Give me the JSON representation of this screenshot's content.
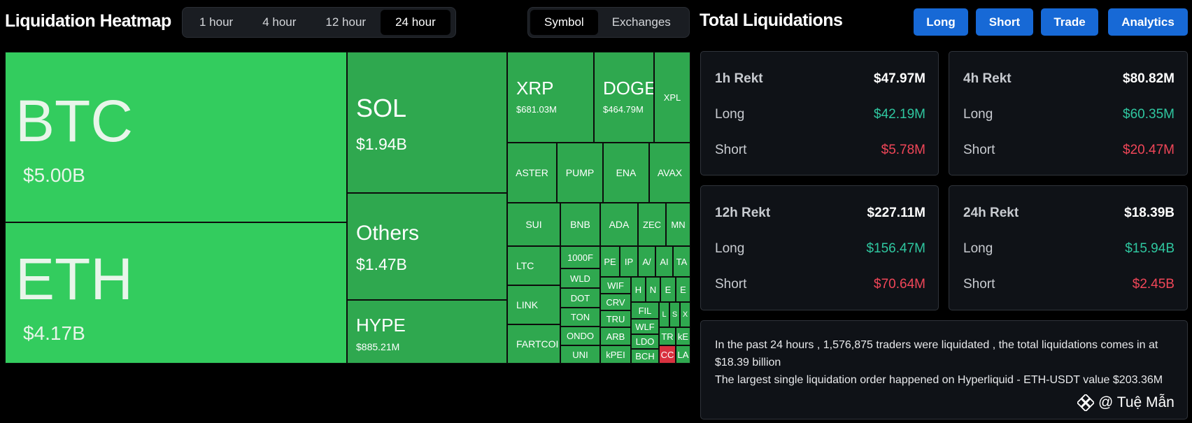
{
  "heatmap": {
    "title": "Liquidation Heatmap",
    "time_options": [
      "1 hour",
      "4 hour",
      "12 hour",
      "24 hour"
    ],
    "time_selected": "24 hour",
    "view_options": [
      "Symbol",
      "Exchanges"
    ],
    "view_selected": "Symbol",
    "tiles": {
      "btc": {
        "symbol": "BTC",
        "value": "$5.00B"
      },
      "eth": {
        "symbol": "ETH",
        "value": "$4.17B"
      },
      "sol": {
        "symbol": "SOL",
        "value": "$1.94B"
      },
      "others": {
        "symbol": "Others",
        "value": "$1.47B"
      },
      "hype": {
        "symbol": "HYPE",
        "value": "$885.21M"
      },
      "xrp": {
        "symbol": "XRP",
        "value": "$681.03M"
      },
      "doge": {
        "symbol": "DOGE",
        "value": "$464.79M"
      },
      "xpl": {
        "symbol": "XPL"
      },
      "aster": {
        "symbol": "ASTER"
      },
      "pump": {
        "symbol": "PUMP"
      },
      "ena": {
        "symbol": "ENA"
      },
      "avax": {
        "symbol": "AVAX"
      },
      "sui": {
        "symbol": "SUI"
      },
      "bnb": {
        "symbol": "BNB"
      },
      "ada": {
        "symbol": "ADA"
      },
      "zec": {
        "symbol": "ZEC"
      },
      "mnt": {
        "symbol": "MN"
      },
      "ltc": {
        "symbol": "LTC"
      },
      "link": {
        "symbol": "LINK"
      },
      "fartcoin": {
        "symbol": "FARTCOI"
      },
      "k1000": {
        "symbol": "1000F"
      },
      "wld": {
        "symbol": "WLD"
      },
      "dot": {
        "symbol": "DOT"
      },
      "ton": {
        "symbol": "TON"
      },
      "ondo": {
        "symbol": "ONDO"
      },
      "uni": {
        "symbol": "UNI"
      },
      "pe": {
        "symbol": "PE"
      },
      "ip": {
        "symbol": "IP"
      },
      "aa": {
        "symbol": "A/"
      },
      "ai": {
        "symbol": "AI"
      },
      "ta": {
        "symbol": "TA"
      },
      "wif": {
        "symbol": "WIF"
      },
      "crv": {
        "symbol": "CRV"
      },
      "tru": {
        "symbol": "TRU"
      },
      "arb": {
        "symbol": "ARB"
      },
      "kpe": {
        "symbol": "kPEI"
      },
      "h": {
        "symbol": "H"
      },
      "n": {
        "symbol": "N"
      },
      "e1": {
        "symbol": "E"
      },
      "e2": {
        "symbol": "E"
      },
      "fil": {
        "symbol": "FIL"
      },
      "wlf": {
        "symbol": "WLF"
      },
      "ldo": {
        "symbol": "LDO"
      },
      "bch": {
        "symbol": "BCH"
      },
      "l1": {
        "symbol": "L"
      },
      "s1": {
        "symbol": "S"
      },
      "x1": {
        "symbol": "X"
      },
      "tr": {
        "symbol": "TR"
      },
      "ke": {
        "symbol": "kE"
      },
      "co": {
        "symbol": "CC"
      },
      "la": {
        "symbol": "LA"
      }
    }
  },
  "panel": {
    "title": "Total Liquidations",
    "buttons": {
      "long": "Long",
      "short": "Short",
      "trade": "Trade",
      "analytics": "Analytics"
    },
    "cards": [
      {
        "label": "1h Rekt",
        "total": "$47.97M",
        "long_label": "Long",
        "long": "$42.19M",
        "short_label": "Short",
        "short": "$5.78M"
      },
      {
        "label": "4h Rekt",
        "total": "$80.82M",
        "long_label": "Long",
        "long": "$60.35M",
        "short_label": "Short",
        "short": "$20.47M"
      },
      {
        "label": "12h Rekt",
        "total": "$227.11M",
        "long_label": "Long",
        "long": "$156.47M",
        "short_label": "Short",
        "short": "$70.64M"
      },
      {
        "label": "24h Rekt",
        "total": "$18.39B",
        "long_label": "Long",
        "long": "$15.94B",
        "short_label": "Short",
        "short": "$2.45B"
      }
    ],
    "summary_line1": "In the past 24 hours , 1,576,875 traders were liquidated , the total liquidations comes in at $18.39 billion",
    "summary_line2": "The largest single liquidation order happened on Hyperliquid - ETH-USDT value $203.36M"
  },
  "watermark": {
    "text": "@ Tuệ Mẫn"
  },
  "colors": {
    "bright_green": "#33cc5e",
    "green": "#2fa84f",
    "red": "#d8313f",
    "button_blue": "#1769d6",
    "long_teal": "#2fc7a0",
    "short_red": "#f04658"
  }
}
